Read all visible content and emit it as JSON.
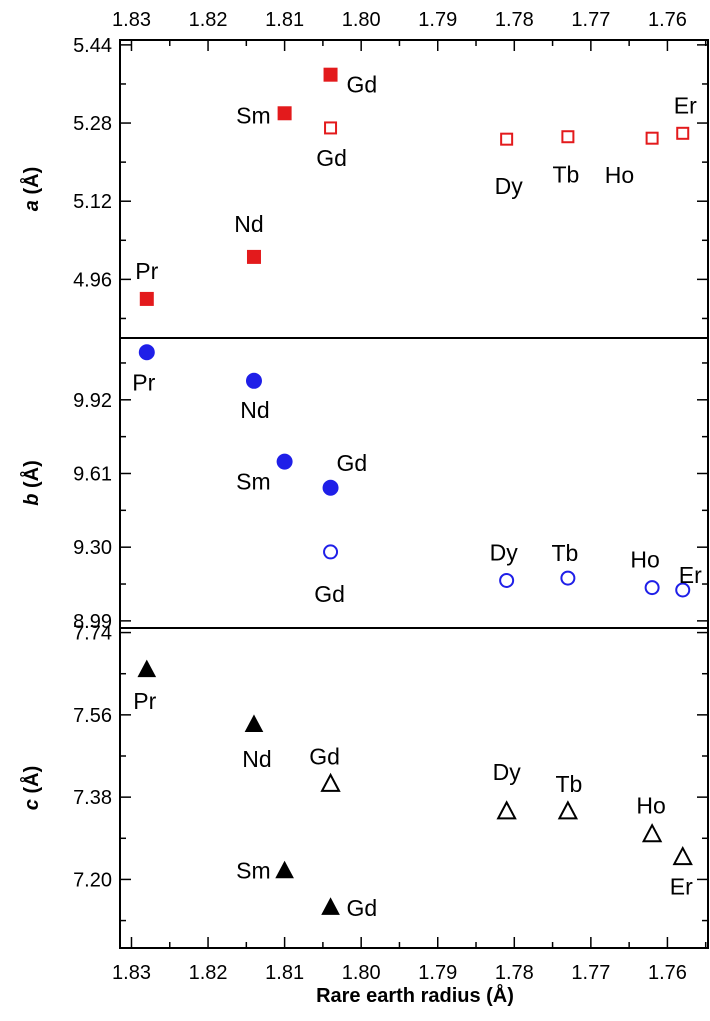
{
  "chart_data": {
    "type": "scatter",
    "xlabel": "Rare earth radius (Å)",
    "x_reversed": true,
    "xlim": [
      1.8315,
      1.7547
    ],
    "x_ticks": [
      1.83,
      1.82,
      1.81,
      1.8,
      1.79,
      1.78,
      1.77,
      1.76
    ],
    "x_tick_labels": [
      "1.83",
      "1.82",
      "1.81",
      "1.80",
      "1.79",
      "1.78",
      "1.77",
      "1.76"
    ],
    "grid": false,
    "colors": {
      "a": "#e31a1c",
      "b": "#1f1fe8",
      "c": "#000000"
    },
    "panels": [
      {
        "id": "a",
        "ylabel_italic": "a",
        "ylabel_rest": " (Å)",
        "ylim": [
          4.84,
          5.45
        ],
        "y_ticks": [
          4.96,
          5.12,
          5.28,
          5.44
        ],
        "y_tick_labels": [
          "4.96",
          "5.12",
          "5.28",
          "5.44"
        ],
        "marker": "square",
        "series": [
          {
            "filled": true,
            "points": [
              {
                "x": 1.828,
                "y": 4.92,
                "label": "Pr"
              },
              {
                "x": 1.814,
                "y": 5.006,
                "label": "Nd"
              },
              {
                "x": 1.81,
                "y": 5.3,
                "label": "Sm"
              },
              {
                "x": 1.804,
                "y": 5.379,
                "label": "Gd"
              }
            ]
          },
          {
            "filled": false,
            "points": [
              {
                "x": 1.804,
                "y": 5.27,
                "label": "Gd"
              },
              {
                "x": 1.781,
                "y": 5.247,
                "label": "Dy"
              },
              {
                "x": 1.773,
                "y": 5.252,
                "label": "Tb"
              },
              {
                "x": 1.762,
                "y": 5.249,
                "label": "Ho"
              },
              {
                "x": 1.758,
                "y": 5.259,
                "label": "Er"
              }
            ]
          }
        ]
      },
      {
        "id": "b",
        "ylabel_italic": "b",
        "ylabel_rest": " (Å)",
        "ylim": [
          8.96,
          10.18
        ],
        "y_ticks": [
          8.99,
          9.3,
          9.61,
          9.92
        ],
        "y_tick_labels": [
          "8.99",
          "9.30",
          "9.61",
          "9.92"
        ],
        "marker": "circle",
        "series": [
          {
            "filled": true,
            "points": [
              {
                "x": 1.828,
                "y": 10.12,
                "label": "Pr"
              },
              {
                "x": 1.814,
                "y": 10.0,
                "label": "Nd"
              },
              {
                "x": 1.81,
                "y": 9.66,
                "label": "Sm"
              },
              {
                "x": 1.804,
                "y": 9.55,
                "label": "Gd"
              }
            ]
          },
          {
            "filled": false,
            "points": [
              {
                "x": 1.804,
                "y": 9.28,
                "label": "Gd"
              },
              {
                "x": 1.781,
                "y": 9.16,
                "label": "Dy"
              },
              {
                "x": 1.773,
                "y": 9.17,
                "label": "Tb"
              },
              {
                "x": 1.762,
                "y": 9.13,
                "label": "Ho"
              },
              {
                "x": 1.758,
                "y": 9.12,
                "label": "Er"
              }
            ]
          }
        ]
      },
      {
        "id": "c",
        "ylabel_italic": "c",
        "ylabel_rest": " (Å)",
        "ylim": [
          7.05,
          7.75
        ],
        "y_ticks": [
          7.2,
          7.38,
          7.56,
          7.74
        ],
        "y_tick_labels": [
          "7.20",
          "7.38",
          "7.56",
          "7.74"
        ],
        "marker": "triangle",
        "series": [
          {
            "filled": true,
            "points": [
              {
                "x": 1.828,
                "y": 7.66,
                "label": "Pr"
              },
              {
                "x": 1.814,
                "y": 7.54,
                "label": "Nd"
              },
              {
                "x": 1.81,
                "y": 7.22,
                "label": "Sm"
              },
              {
                "x": 1.804,
                "y": 7.14,
                "label": "Gd"
              }
            ]
          },
          {
            "filled": false,
            "points": [
              {
                "x": 1.804,
                "y": 7.41,
                "label": "Gd"
              },
              {
                "x": 1.781,
                "y": 7.35,
                "label": "Dy"
              },
              {
                "x": 1.773,
                "y": 7.35,
                "label": "Tb"
              },
              {
                "x": 1.762,
                "y": 7.3,
                "label": "Ho"
              },
              {
                "x": 1.758,
                "y": 7.25,
                "label": "Er"
              }
            ]
          }
        ]
      }
    ]
  }
}
